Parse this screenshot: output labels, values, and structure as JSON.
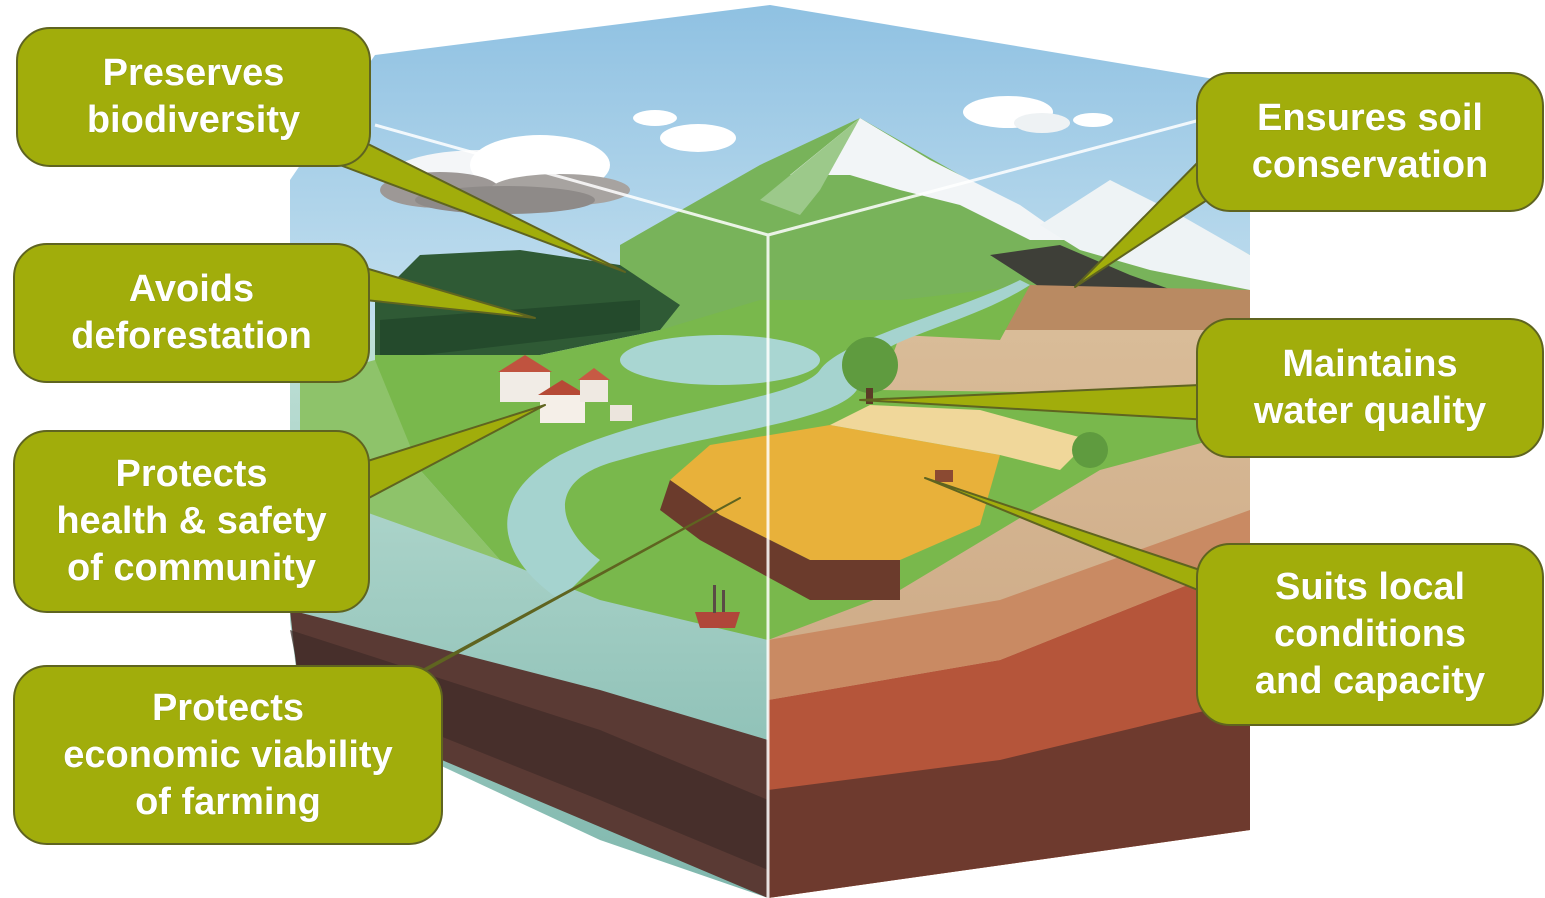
{
  "colors": {
    "callout_fill": "#a1ad0b",
    "callout_border": "#5f6420",
    "callout_text": "#ffffff",
    "sky": "#a8cde6",
    "grass": "#6fb34a",
    "field": "#e9b23a",
    "soil": "#c9a888",
    "deep_soil": "#7a4535",
    "water": "#9fd0c8",
    "snow": "#f3f6f8"
  },
  "callouts": {
    "biodiversity": "Preserves\nbiodiversity",
    "deforestation": "Avoids\ndeforestation",
    "health": "Protects\nhealth & safety\nof community",
    "economic": "Protects\neconomic viability\nof farming",
    "soil": "Ensures soil\nconservation",
    "water": "Maintains\nwater quality",
    "local": "Suits local\nconditions\nand capacity"
  }
}
